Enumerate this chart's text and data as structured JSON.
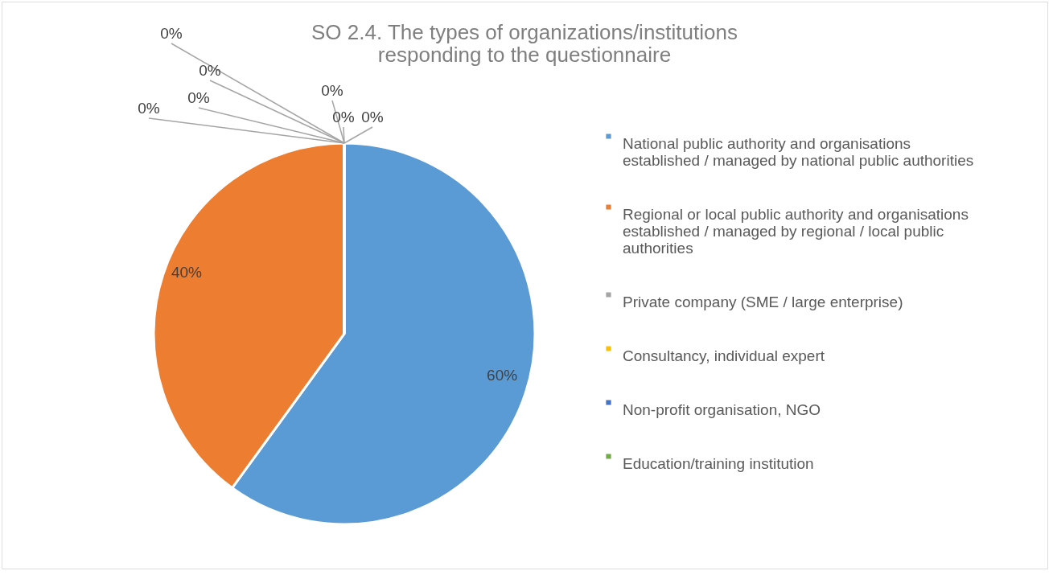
{
  "chart_data": {
    "type": "pie",
    "title": "SO 2.4. The types of organizations/institutions responding to the questionnaire",
    "categories": [
      "National public authority and organisations established / managed by national public authorities",
      "Regional or local public authority and organisations established / managed by regional / local public authorities",
      "Private company (SME / large enterprise)",
      "Consultancy, individual expert",
      "Non-profit organisation, NGO",
      "Education/training institution",
      null,
      null,
      null
    ],
    "values": [
      60,
      40,
      0,
      0,
      0,
      0,
      0,
      0,
      0
    ],
    "value_labels": [
      "60%",
      "40%",
      "0%",
      "0%",
      "0%",
      "0%",
      "0%",
      "0%",
      "0%"
    ],
    "colors": [
      "#5b9bd5",
      "#ed7d31",
      "#a5a5a5",
      "#ffc000",
      "#4472c4",
      "#70ad47",
      "#255e91",
      "#9e480e",
      "#636363"
    ],
    "legend": "right"
  }
}
